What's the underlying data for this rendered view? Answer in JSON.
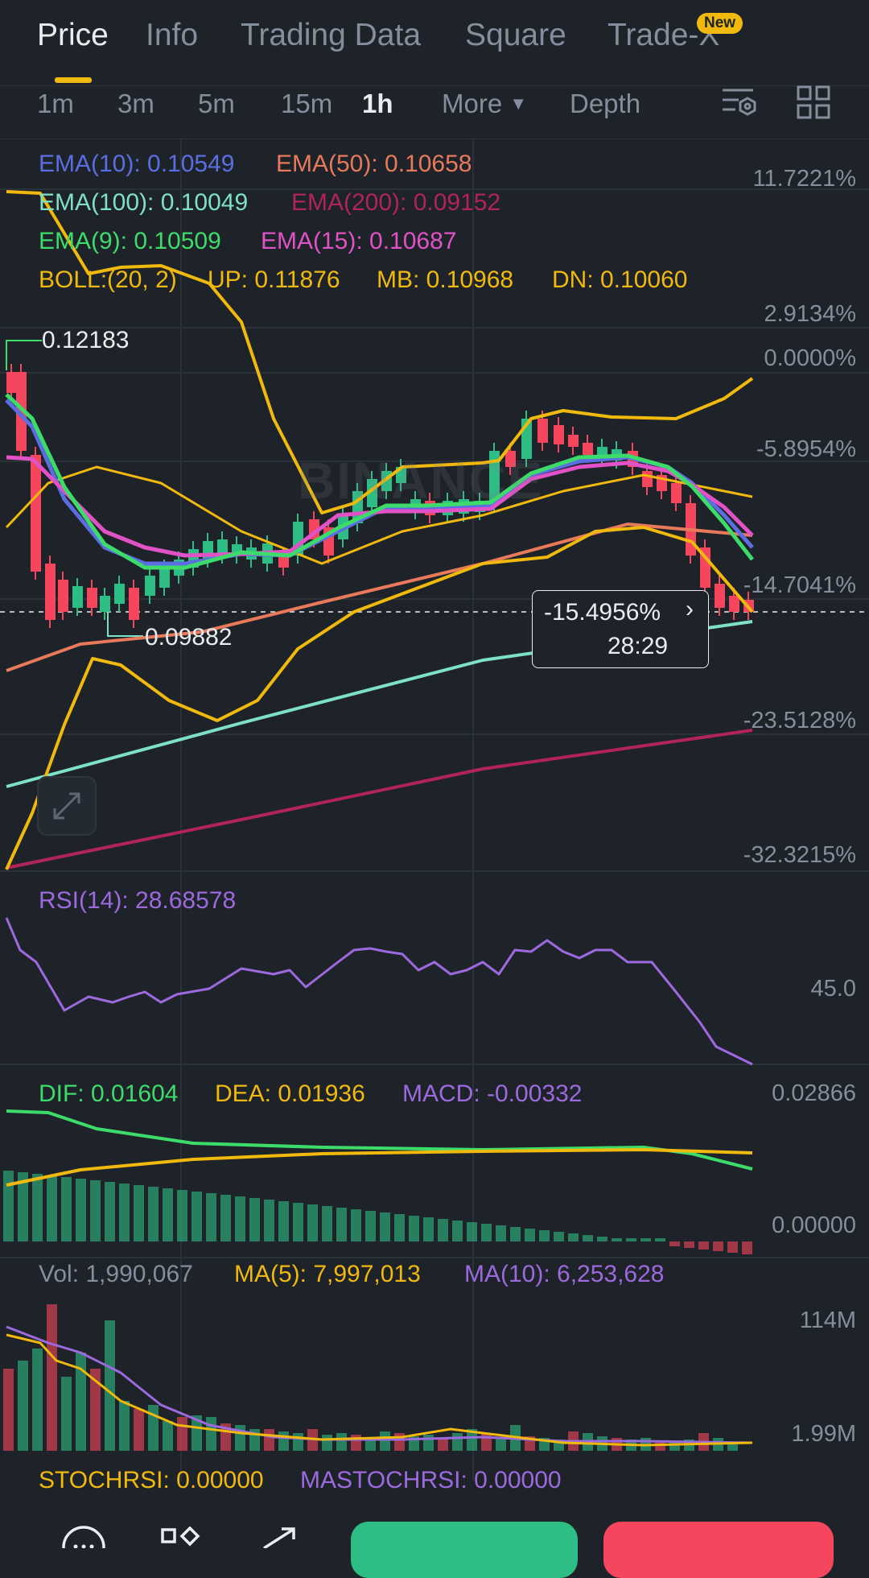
{
  "tabs": [
    {
      "label": "Price"
    },
    {
      "label": "Info"
    },
    {
      "label": "Trading Data"
    },
    {
      "label": "Square"
    },
    {
      "label": "Trade-X",
      "badge": "New"
    }
  ],
  "timeframes": [
    "1m",
    "3m",
    "5m",
    "15m",
    "1h"
  ],
  "timeframe_more": "More",
  "timeframe_depth": "Depth",
  "indicators": {
    "ema10": "EMA(10): 0.10549",
    "ema50": "EMA(50): 0.10658",
    "ema100": "EMA(100): 0.10049",
    "ema200": "EMA(200): 0.09152",
    "ema9": "EMA(9): 0.10509",
    "ema15": "EMA(15): 0.10687",
    "boll": "BOLL:(20, 2)",
    "boll_up": "UP: 0.11876",
    "boll_mb": "MB: 0.10968",
    "boll_dn": "DN: 0.10060"
  },
  "price_axis": [
    "11.7221%",
    "2.9134%",
    "0.0000%",
    "-5.8954%",
    "-14.7041%",
    "-23.5128%",
    "-32.3215%"
  ],
  "high_label": "0.12183",
  "low_label": "0.09882",
  "current_tag": {
    "percent": "-15.4956%",
    "countdown": "28:29"
  },
  "watermark": "BINANCE",
  "rsi": {
    "label": "RSI(14): 28.68578",
    "axis": "45.0"
  },
  "macd": {
    "dif": "DIF: 0.01604",
    "dea": "DEA: 0.01936",
    "macd": "MACD: -0.00332",
    "axis_top": "0.02866",
    "axis_bottom": "0.00000"
  },
  "volume": {
    "vol": "Vol: 1,990,067",
    "ma5": "MA(5): 7,997,013",
    "ma10": "MA(10): 6,253,628",
    "axis_top": "114M",
    "axis_bottom": "1.99M"
  },
  "stochrsi": {
    "stoch": "STOCHRSI: 0.00000",
    "mastoch": "MASTOCHRSI: 0.00000"
  },
  "colors": {
    "background": "#1e2329",
    "accent": "#f0b90b",
    "up": "#2ebd85",
    "down": "#f6465d",
    "ema10": "#5b6ee1",
    "ema50": "#e8795a",
    "ema100": "#7ee0c8",
    "ema200": "#b0235f",
    "ema9": "#3ddc6a",
    "ema15": "#e052c6",
    "boll": "#f0b90b",
    "rsi": "#9c6ade"
  }
}
